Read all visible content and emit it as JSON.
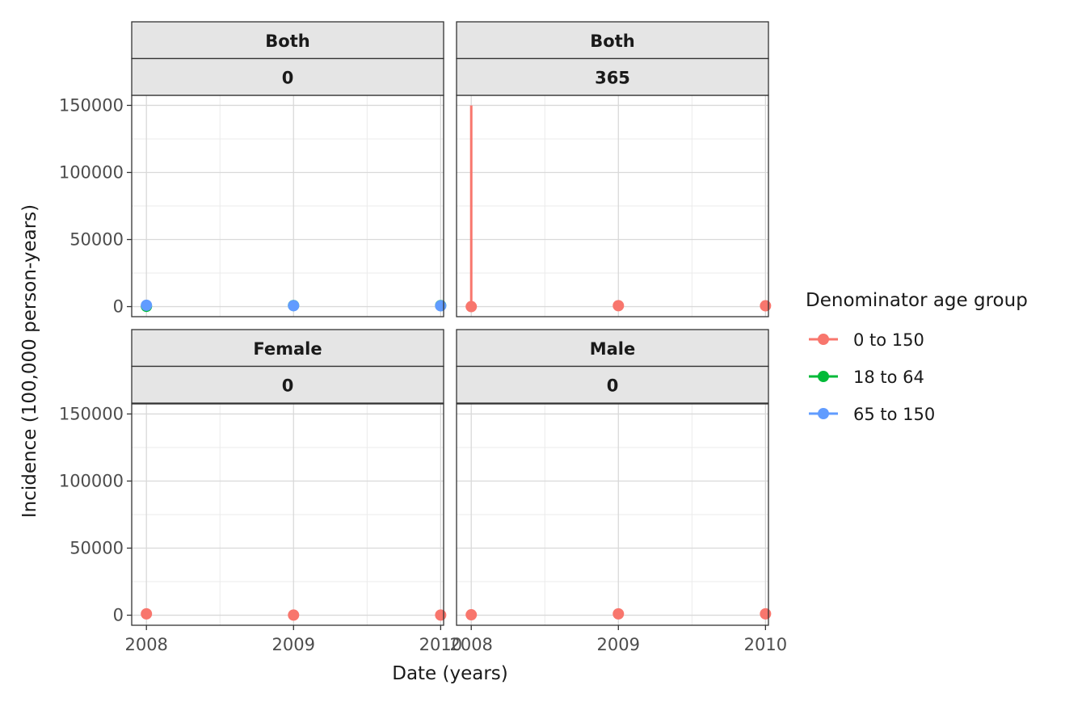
{
  "chart_data": {
    "type": "line",
    "facet_layout": "2x2 grid",
    "xlabel": "Date (years)",
    "ylabel": "Incidence (100,000 person-years)",
    "x_ticks": [
      "2008",
      "2009",
      "2010"
    ],
    "xlim": [
      2007.9,
      2010.02
    ],
    "y_ticks": [
      0,
      50000,
      100000,
      150000
    ],
    "ylim": [
      -7500,
      157500
    ],
    "grid": true,
    "legend": {
      "title": "Denominator age group",
      "position": "right",
      "entries": [
        {
          "label": "0 to 150",
          "color": "#F8766D"
        },
        {
          "label": "18 to 64",
          "color": "#00BA38"
        },
        {
          "label": "65 to 150",
          "color": "#619CFF"
        }
      ]
    },
    "panels": [
      {
        "strip_top": "Both",
        "strip_bottom": "0",
        "series": [
          {
            "group": "18 to 64",
            "points": [
              [
                2008,
                200
              ],
              [
                2009,
                800
              ],
              [
                2010,
                800
              ]
            ]
          },
          {
            "group": "65 to 150",
            "points": [
              [
                2008,
                1000
              ],
              [
                2009,
                700
              ],
              [
                2010,
                600
              ]
            ]
          }
        ]
      },
      {
        "strip_top": "Both",
        "strip_bottom": "365",
        "series": [
          {
            "group": "0 to 150",
            "vertical_segment": {
              "x": 2008,
              "y_from": 0,
              "y_to": 150000
            },
            "points": [
              [
                2008,
                0
              ],
              [
                2009,
                700
              ],
              [
                2010,
                600
              ]
            ]
          }
        ]
      },
      {
        "strip_top": "Female",
        "strip_bottom": "0",
        "series": [
          {
            "group": "0 to 150",
            "points": [
              [
                2008,
                1000
              ],
              [
                2009,
                100
              ],
              [
                2010,
                100
              ]
            ]
          }
        ]
      },
      {
        "strip_top": "Male",
        "strip_bottom": "0",
        "series": [
          {
            "group": "0 to 150",
            "points": [
              [
                2008,
                300
              ],
              [
                2009,
                1000
              ],
              [
                2010,
                1000
              ]
            ]
          }
        ]
      }
    ]
  }
}
